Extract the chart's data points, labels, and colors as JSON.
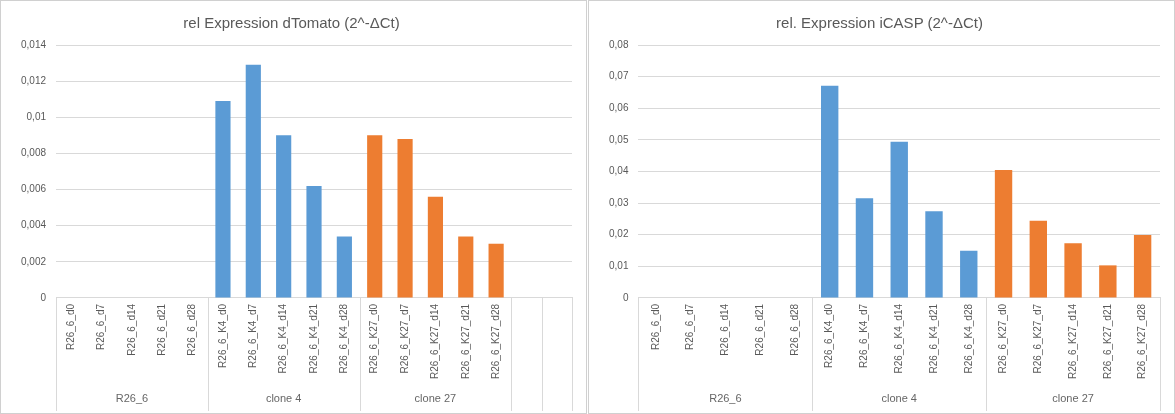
{
  "chart_data": [
    {
      "type": "bar",
      "title": "rel Expression dTomato (2^-ΔCt)",
      "categories": [
        "R26_6_d0",
        "R26_6_d7",
        "R26_6_d14",
        "R26_6_d21",
        "R26_6_d28",
        "R26_6_K4_d0",
        "R26_6_K4_d7",
        "R26_6_K4_d14",
        "R26_6_K4_d21",
        "R26_6_K4_d28",
        "R26_6_K27_d0",
        "R26_6_K27_d7",
        "R26_6_K27_d14",
        "R26_6_K27_d21",
        "R26_6_K27_d28",
        null,
        null
      ],
      "values": [
        0,
        0,
        0,
        0,
        0,
        0.0109,
        0.0129,
        0.009,
        0.0062,
        0.0034,
        0.009,
        0.0088,
        0.0056,
        0.0034,
        0.003,
        null,
        null
      ],
      "colors": [
        "#5b9bd5",
        "#5b9bd5",
        "#5b9bd5",
        "#5b9bd5",
        "#5b9bd5",
        "#5b9bd5",
        "#5b9bd5",
        "#5b9bd5",
        "#5b9bd5",
        "#5b9bd5",
        "#ed7d31",
        "#ed7d31",
        "#ed7d31",
        "#ed7d31",
        "#ed7d31",
        "#ed7d31",
        "#ed7d31"
      ],
      "ylim": [
        0,
        0.014
      ],
      "yticks": [
        0,
        {
          "value": 0.002,
          "label": "0,002"
        },
        {
          "value": 0.004,
          "label": "0,004"
        },
        {
          "value": 0.006,
          "label": "0,006"
        },
        {
          "value": 0.008,
          "label": "0,008"
        },
        {
          "value": 0.01,
          "label": "0,01"
        },
        {
          "value": 0.012,
          "label": "0,012"
        },
        {
          "value": 0.014,
          "label": "0,014"
        }
      ],
      "annotations": [
        "R26_6",
        "clone 4",
        "clone 27"
      ],
      "grid": "y",
      "legend": false
    },
    {
      "type": "bar",
      "title": "rel. Expression iCASP (2^-ΔCt)",
      "categories": [
        "R26_6_d0",
        "R26_6_d7",
        "R26_6_d14",
        "R26_6_d21",
        "R26_6_d28",
        "R26_6_K4_d0",
        "R26_6_K4_d7",
        "R26_6_K4_d14",
        "R26_6_K4_d21",
        "R26_6_K4_d28",
        "R26_6_K27_d0",
        "R26_6_K27_d7",
        "R26_6_K27_d14",
        "R26_6_K27_d21",
        "R26_6_K27_d28"
      ],
      "values": [
        0,
        0,
        0,
        0,
        0,
        0.0671,
        0.0315,
        0.0494,
        0.0274,
        0.0149,
        0.0405,
        0.0244,
        0.0173,
        0.0103,
        0.0199
      ],
      "colors": [
        "#5b9bd5",
        "#5b9bd5",
        "#5b9bd5",
        "#5b9bd5",
        "#5b9bd5",
        "#5b9bd5",
        "#5b9bd5",
        "#5b9bd5",
        "#5b9bd5",
        "#5b9bd5",
        "#ed7d31",
        "#ed7d31",
        "#ed7d31",
        "#ed7d31",
        "#ed7d31"
      ],
      "ylim": [
        0,
        0.08
      ],
      "yticks": [
        0,
        {
          "value": 0.01,
          "label": "0,01"
        },
        {
          "value": 0.02,
          "label": "0,02"
        },
        {
          "value": 0.03,
          "label": "0,03"
        },
        {
          "value": 0.04,
          "label": "0,04"
        },
        {
          "value": 0.05,
          "label": "0,05"
        },
        {
          "value": 0.06,
          "label": "0,06"
        },
        {
          "value": 0.07,
          "label": "0,07"
        },
        {
          "value": 0.08,
          "label": "0,08"
        }
      ],
      "annotations": [
        "R26_6",
        "clone 4",
        "clone 27"
      ],
      "grid": "y",
      "legend": false
    }
  ]
}
